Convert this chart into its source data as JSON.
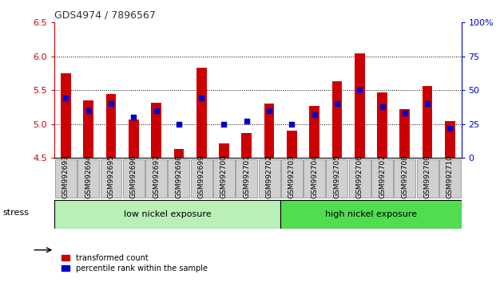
{
  "title": "GDS4974 / 7896567",
  "categories": [
    "GSM992693",
    "GSM992694",
    "GSM992695",
    "GSM992696",
    "GSM992697",
    "GSM992698",
    "GSM992699",
    "GSM992700",
    "GSM992701",
    "GSM992702",
    "GSM992703",
    "GSM992704",
    "GSM992705",
    "GSM992706",
    "GSM992707",
    "GSM992708",
    "GSM992709",
    "GSM992710"
  ],
  "red_values": [
    5.75,
    5.35,
    5.45,
    5.07,
    5.32,
    4.63,
    5.83,
    4.72,
    4.87,
    5.3,
    4.9,
    5.27,
    5.63,
    6.05,
    5.47,
    5.22,
    5.56,
    5.05
  ],
  "blue_values": [
    44,
    35,
    40,
    30,
    35,
    25,
    44,
    25,
    27,
    35,
    25,
    32,
    40,
    50,
    38,
    33,
    40,
    22
  ],
  "ylim_left": [
    4.5,
    6.5
  ],
  "ylim_right": [
    0,
    100
  ],
  "yticks_left": [
    4.5,
    5.0,
    5.5,
    6.0,
    6.5
  ],
  "yticks_right": [
    0,
    25,
    50,
    75,
    100
  ],
  "bar_color": "#cc0000",
  "dot_color": "#0000cc",
  "group1_label": "low nickel exposure",
  "group2_label": "high nickel exposure",
  "group1_color": "#b8f0b8",
  "group2_color": "#50dd50",
  "group1_count": 10,
  "group2_count": 8,
  "stress_label": "stress",
  "legend_red": "transformed count",
  "legend_blue": "percentile rank within the sample",
  "base": 4.5,
  "dotted_lines": [
    5.0,
    5.5,
    6.0
  ],
  "left_axis_color": "#cc0000",
  "right_axis_color": "#0000cc",
  "xlabel_bg": "#d0d0d0",
  "xlabel_border": "#888888"
}
